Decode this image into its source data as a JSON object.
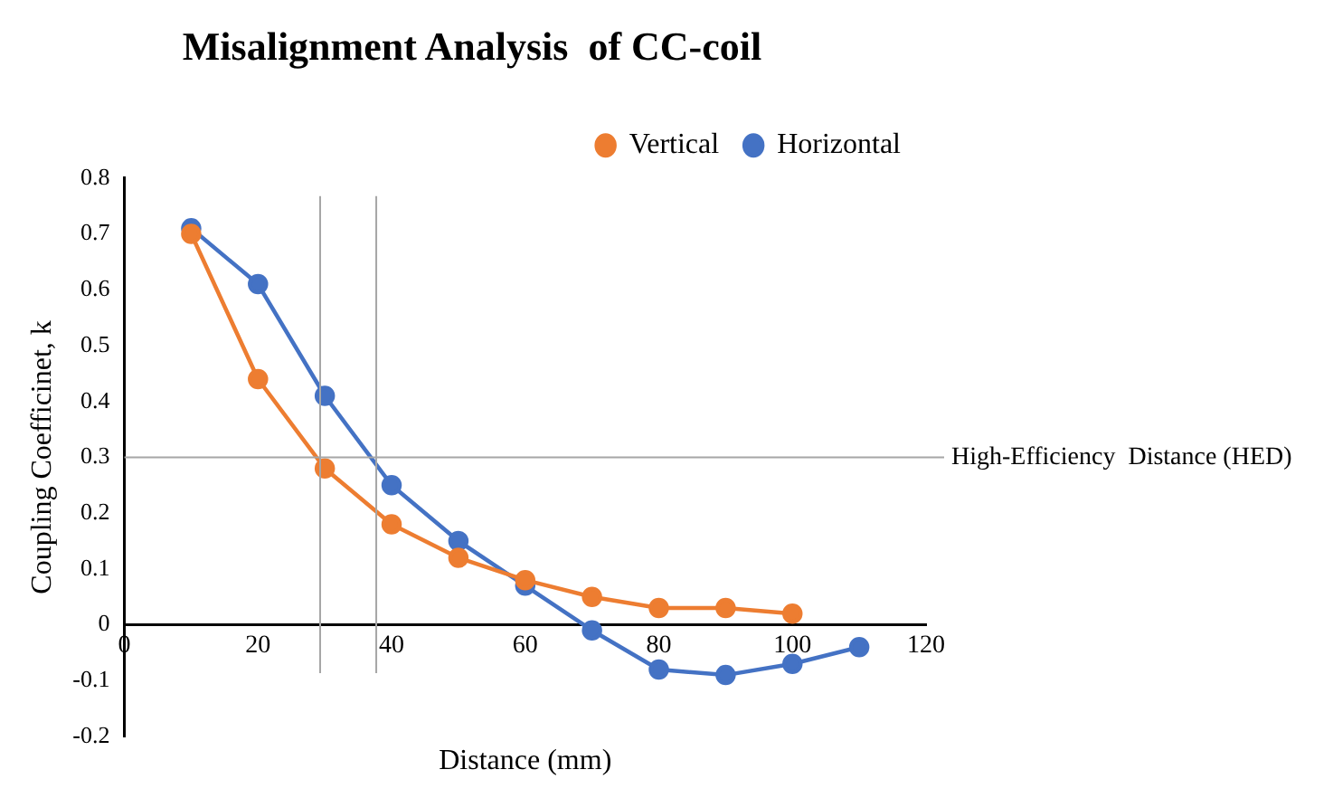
{
  "chart_data": {
    "type": "line",
    "title": "Misalignment Analysis  of CC-coil",
    "xlabel": "Distance (mm)",
    "ylabel": "Coupling Coefficinet, k",
    "x": [
      10,
      20,
      30,
      40,
      50,
      60,
      70,
      80,
      90,
      100,
      110
    ],
    "series": [
      {
        "name": "Horizontal",
        "color": "#4472c4",
        "values": [
          0.71,
          0.61,
          0.41,
          0.25,
          0.15,
          0.07,
          -0.01,
          -0.08,
          -0.09,
          -0.07,
          -0.04
        ]
      },
      {
        "name": "Vertical",
        "color": "#ed7d31",
        "values": [
          0.7,
          0.44,
          0.28,
          0.18,
          0.12,
          0.08,
          0.05,
          0.03,
          0.03,
          0.02,
          null
        ]
      }
    ],
    "xlim": [
      0,
      120
    ],
    "xticks": [
      0,
      20,
      40,
      60,
      80,
      100,
      120
    ],
    "ylim": [
      -0.2,
      0.8
    ],
    "yticks": [
      -0.2,
      -0.1,
      0,
      0.1,
      0.2,
      0.3,
      0.4,
      0.5,
      0.6,
      0.7,
      0.8
    ],
    "ref_lines": [
      {
        "axis": "y",
        "value": 0.3,
        "label": "High-Efficiency  Distance (HED)",
        "color": "#a6a6a6"
      },
      {
        "axis": "x",
        "value": 29.3,
        "color": "#a6a6a6"
      },
      {
        "axis": "x",
        "value": 37.7,
        "color": "#a6a6a6"
      }
    ],
    "grid": false,
    "legend": "top right",
    "marker": "circle",
    "line_style": "solid"
  }
}
